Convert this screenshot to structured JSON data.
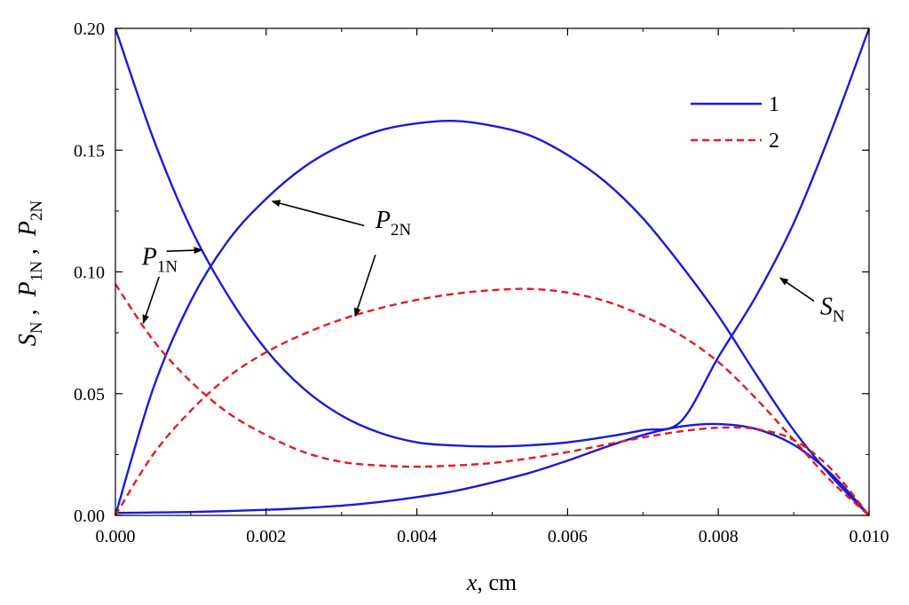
{
  "chart_data": {
    "type": "line",
    "xlabel": {
      "italic": "x",
      "rest": ", cm"
    },
    "ylabel": {
      "s": "S",
      "s_sub": "N",
      "p1": "P",
      "p1_sub": "1N",
      "p2": "P",
      "p2_sub": "2N",
      "sep": " ,  "
    },
    "xlim": [
      0,
      0.01
    ],
    "ylim": [
      0,
      0.2
    ],
    "x_ticks": [
      "0.000",
      "0.002",
      "0.004",
      "0.006",
      "0.008",
      "0.010"
    ],
    "y_ticks": [
      "0.00",
      "0.05",
      "0.10",
      "0.15",
      "0.20"
    ],
    "grid": false,
    "legend": {
      "position": "top-right",
      "entries": [
        {
          "label": "1",
          "color": "#1a1adb",
          "dash": "solid"
        },
        {
          "label": "2",
          "color": "#e8191b",
          "dash": "dashed"
        }
      ]
    },
    "series": [
      {
        "legend": "1",
        "curve": "S_N",
        "color": "#1a1adb",
        "dash": "solid",
        "x": [
          0,
          0.0005,
          0.001,
          0.0015,
          0.002,
          0.0025,
          0.003,
          0.0035,
          0.004,
          0.0045,
          0.005,
          0.0055,
          0.006,
          0.0065,
          0.007,
          0.0075,
          0.008,
          0.0085,
          0.009,
          0.0095,
          0.01
        ],
        "y": [
          0.2,
          0.155,
          0.118,
          0.09,
          0.068,
          0.052,
          0.041,
          0.034,
          0.03,
          0.0287,
          0.0283,
          0.0288,
          0.03,
          0.0322,
          0.035,
          0.0385,
          0.065,
          0.09,
          0.12,
          0.158,
          0.2
        ]
      },
      {
        "legend": "1",
        "curve": "P_2N",
        "color": "#1a1adb",
        "dash": "solid",
        "x": [
          0,
          0.0005,
          0.001,
          0.0015,
          0.002,
          0.0025,
          0.003,
          0.0035,
          0.004,
          0.0045,
          0.005,
          0.0055,
          0.006,
          0.0065,
          0.007,
          0.0075,
          0.008,
          0.0085,
          0.009,
          0.0095,
          0.01
        ],
        "y": [
          0,
          0.052,
          0.088,
          0.113,
          0.13,
          0.143,
          0.152,
          0.158,
          0.161,
          0.162,
          0.16,
          0.156,
          0.148,
          0.137,
          0.122,
          0.103,
          0.082,
          0.058,
          0.035,
          0.016,
          0
        ]
      },
      {
        "legend": "1",
        "curve": "P_1N",
        "color": "#1a1adb",
        "dash": "solid",
        "x": [
          0,
          0.0005,
          0.001,
          0.0015,
          0.002,
          0.0025,
          0.003,
          0.0035,
          0.004,
          0.0045,
          0.005,
          0.0055,
          0.006,
          0.0065,
          0.007,
          0.0075,
          0.008,
          0.0085,
          0.009,
          0.0095,
          0.01
        ],
        "y": [
          0.001,
          0.0012,
          0.0014,
          0.0018,
          0.0023,
          0.003,
          0.004,
          0.0055,
          0.0075,
          0.01,
          0.0135,
          0.0175,
          0.0225,
          0.028,
          0.033,
          0.0365,
          0.0375,
          0.0355,
          0.029,
          0.017,
          0
        ]
      },
      {
        "legend": "2",
        "curve": "P_2N",
        "color": "#e8191b",
        "dash": "dashed",
        "x": [
          0,
          0.0005,
          0.001,
          0.0015,
          0.002,
          0.0025,
          0.003,
          0.0035,
          0.004,
          0.0045,
          0.005,
          0.0055,
          0.006,
          0.0065,
          0.007,
          0.0075,
          0.008,
          0.0085,
          0.009,
          0.0095,
          0.01
        ],
        "y": [
          0,
          0.025,
          0.043,
          0.057,
          0.067,
          0.0745,
          0.0805,
          0.085,
          0.0885,
          0.091,
          0.0925,
          0.093,
          0.0915,
          0.088,
          0.082,
          0.074,
          0.063,
          0.048,
          0.031,
          0.014,
          0
        ]
      },
      {
        "legend": "2",
        "curve": "P_1N",
        "color": "#e8191b",
        "dash": "dashed",
        "x": [
          0,
          0.0005,
          0.001,
          0.0015,
          0.002,
          0.0025,
          0.003,
          0.0035,
          0.004,
          0.0045,
          0.005,
          0.0055,
          0.006,
          0.0065,
          0.007,
          0.0075,
          0.008,
          0.0085,
          0.009,
          0.0095,
          0.01
        ],
        "y": [
          0.095,
          0.072,
          0.055,
          0.042,
          0.033,
          0.026,
          0.022,
          0.0205,
          0.02,
          0.0205,
          0.0215,
          0.0235,
          0.026,
          0.029,
          0.032,
          0.0345,
          0.036,
          0.0355,
          0.031,
          0.019,
          0
        ]
      }
    ],
    "annotations": [
      {
        "name": "P2N",
        "main": "P",
        "sub": "2N",
        "label_x": 0.00345,
        "label_y": 0.118,
        "arrows": [
          {
            "from": [
              0.0033,
              0.119
            ],
            "to": [
              0.00208,
              0.129
            ]
          },
          {
            "from": [
              0.00345,
              0.107
            ],
            "to": [
              0.00318,
              0.0818
            ]
          }
        ]
      },
      {
        "name": "P1N",
        "main": "P",
        "sub": "1N",
        "label_x": 0.00035,
        "label_y": 0.103,
        "arrows": [
          {
            "from": [
              0.00068,
              0.1085
            ],
            "to": [
              0.00115,
              0.109
            ]
          },
          {
            "from": [
              0.00058,
              0.098
            ],
            "to": [
              0.00037,
              0.079
            ]
          }
        ]
      },
      {
        "name": "SN",
        "main": "S",
        "sub": "N",
        "label_x": 0.00935,
        "label_y": 0.0825,
        "arrows": [
          {
            "from": [
              0.00927,
              0.088
            ],
            "to": [
              0.00882,
              0.0975
            ]
          }
        ]
      }
    ]
  }
}
